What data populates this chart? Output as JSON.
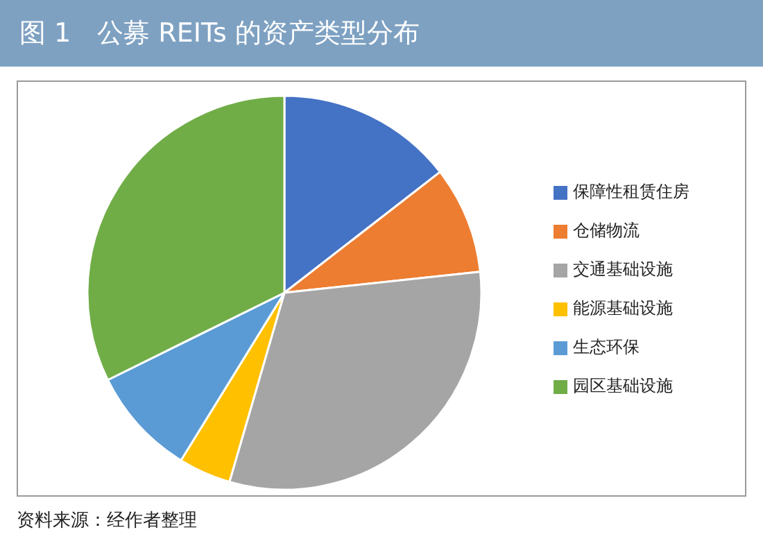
{
  "chart_data": {
    "type": "pie",
    "title": "图 1　公募 REITs 的资产类型分布",
    "categories": [
      "保障性租赁住房",
      "仓储物流",
      "交通基础设施",
      "能源基础设施",
      "生态环保",
      "园区基础设施"
    ],
    "values": [
      14.5,
      8.8,
      31.2,
      4.3,
      8.9,
      32.3
    ],
    "colors": [
      "#4472c4",
      "#ed7d31",
      "#a5a5a5",
      "#ffc000",
      "#5b9bd5",
      "#70ad47"
    ],
    "legend": "right",
    "annotations": [
      "资料来源：经作者整理"
    ]
  }
}
